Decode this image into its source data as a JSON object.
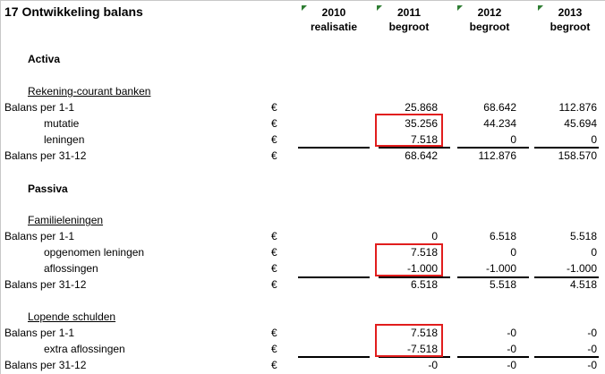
{
  "title": "17 Ontwikkeling balans",
  "columns": [
    {
      "year": "2010",
      "type": "realisatie"
    },
    {
      "year": "2011",
      "type": "begroot"
    },
    {
      "year": "2012",
      "type": "begroot"
    },
    {
      "year": "2013",
      "type": "begroot"
    }
  ],
  "currency": "€",
  "colors": {
    "highlight": "#e11d1d",
    "cell_marker": "#2e7d32"
  },
  "rows": [
    {
      "label": "Activa",
      "style": "bold"
    },
    {
      "label": "Rekening-courant banken",
      "style": "ul"
    },
    {
      "label": "Balans per 1-1",
      "values": [
        "",
        "25.868",
        "68.642",
        "112.876"
      ]
    },
    {
      "label": "mutatie",
      "indent": true,
      "values": [
        "",
        "35.256",
        "44.234",
        "45.694"
      ]
    },
    {
      "label": "leningen",
      "indent": true,
      "values": [
        "",
        "7.518",
        "0",
        "0"
      ]
    },
    {
      "label": "Balans per 31-12",
      "values": [
        "",
        "68.642",
        "112.876",
        "158.570"
      ]
    },
    {
      "label": "Passiva",
      "style": "bold"
    },
    {
      "label": "Familieleningen",
      "style": "ul"
    },
    {
      "label": "Balans per 1-1",
      "values": [
        "",
        "0",
        "6.518",
        "5.518"
      ]
    },
    {
      "label": "opgenomen leningen",
      "indent": true,
      "values": [
        "",
        "7.518",
        "0",
        "0"
      ]
    },
    {
      "label": "aflossingen",
      "indent": true,
      "values": [
        "",
        "-1.000",
        "-1.000",
        "-1.000"
      ]
    },
    {
      "label": "Balans per 31-12",
      "values": [
        "",
        "6.518",
        "5.518",
        "4.518"
      ]
    },
    {
      "label": "Lopende schulden",
      "style": "ul"
    },
    {
      "label": "Balans per 1-1",
      "values": [
        "",
        "7.518",
        "-0",
        "-0"
      ]
    },
    {
      "label": "extra aflossingen",
      "indent": true,
      "values": [
        "",
        "-7.518",
        "-0",
        "-0"
      ]
    },
    {
      "label": "Balans per 31-12",
      "values": [
        "",
        "-0",
        "-0",
        "-0"
      ]
    }
  ]
}
